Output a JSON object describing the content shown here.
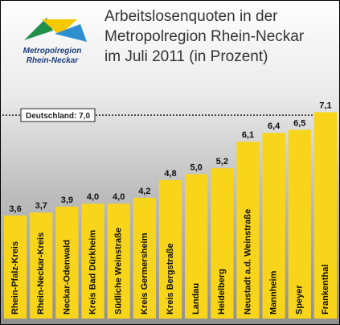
{
  "logo": {
    "lines": [
      "Metropolregion",
      "Rhein-Neckar"
    ]
  },
  "chart_data": {
    "type": "bar",
    "title_lines": [
      "Arbeitslosenquoten in der",
      "Metropolregion Rhein-Neckar",
      "im Juli 2011 (in Prozent)"
    ],
    "categories": [
      "Rhein-Pfalz-Kreis",
      "Rhein-Neckar-Kreis",
      "Neckar-Odenwald",
      "Kreis Bad Dürkheim",
      "Südliche Weinstraße",
      "Kreis Germersheim",
      "Kreis Bergstraße",
      "Landau",
      "Heidelberg",
      "Neustadt a.d. Weinstraße",
      "Mannheim",
      "Speyer",
      "Frankenthal"
    ],
    "values": [
      3.6,
      3.7,
      3.9,
      4.0,
      4.0,
      4.2,
      4.8,
      5.0,
      5.2,
      6.1,
      6.4,
      6.5,
      7.1
    ],
    "value_labels": [
      "3,6",
      "3,7",
      "3,9",
      "4,0",
      "4,0",
      "4,2",
      "4,8",
      "5,0",
      "5,2",
      "6,1",
      "6,4",
      "6,5",
      "7,1"
    ],
    "color": "#f8d51a",
    "ylim": [
      0,
      10.9
    ],
    "reference_line": {
      "value": 7.0,
      "label": "Deutschland: 7,0"
    }
  }
}
